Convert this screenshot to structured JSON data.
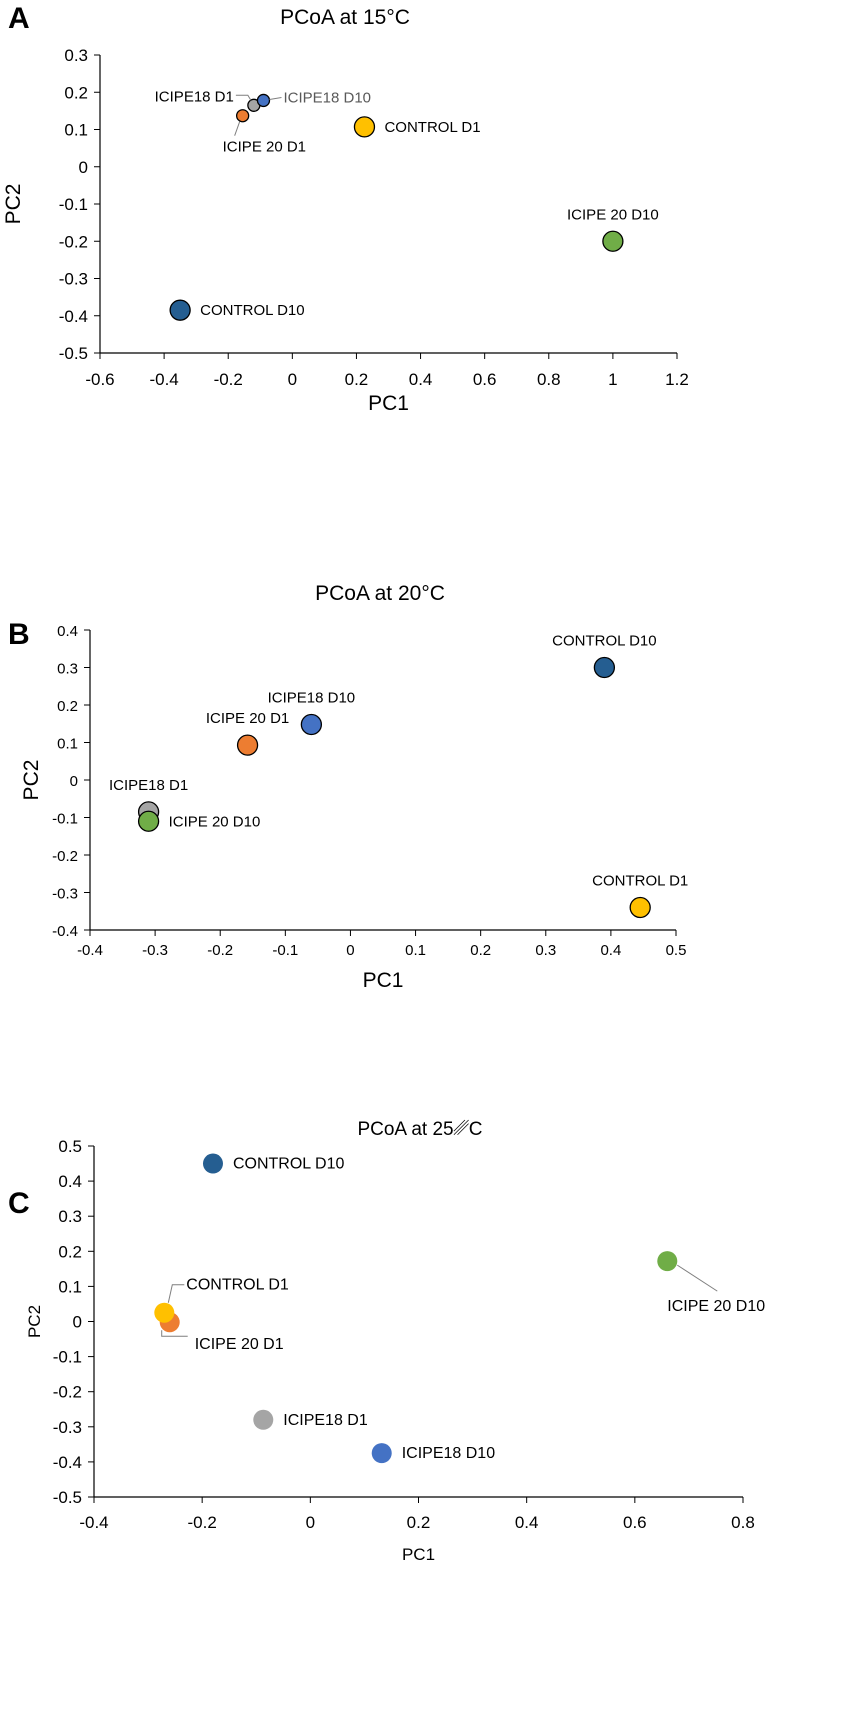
{
  "chart_data": [
    {
      "panel": "A",
      "type": "scatter",
      "title": "PCoA at 15°C",
      "xlabel": "PC1",
      "ylabel": "PC2",
      "xlim": [
        -0.6,
        1.2
      ],
      "ylim": [
        -0.5,
        0.3
      ],
      "xticks": [
        "-0.6",
        "-0.4",
        "-0.2",
        "0",
        "0.2",
        "0.4",
        "0.6",
        "0.8",
        "1",
        "1.2"
      ],
      "yticks": [
        "0.3",
        "0.2",
        "0.1",
        "0",
        "-0.1",
        "-0.2",
        "-0.3",
        "-0.4",
        "-0.5"
      ],
      "grid": false,
      "points": [
        {
          "label": "ICIPE18 D1",
          "x": -0.12,
          "y": 0.165,
          "color": "#a5a5a5",
          "size": "small",
          "label_pos": "left-leader"
        },
        {
          "label": "ICIPE18 D10",
          "x": -0.09,
          "y": 0.178,
          "color": "#4472c4",
          "size": "small",
          "label_pos": "right-leader"
        },
        {
          "label": "ICIPE 20 D1",
          "x": -0.155,
          "y": 0.137,
          "color": "#ed7d31",
          "size": "small",
          "label_pos": "below-leader"
        },
        {
          "label": "CONTROL D1",
          "x": 0.225,
          "y": 0.107,
          "color": "#ffc000",
          "size": "large",
          "label_pos": "right"
        },
        {
          "label": "ICIPE 20 D10",
          "x": 1.0,
          "y": -0.2,
          "color": "#70ad47",
          "size": "large",
          "label_pos": "above"
        },
        {
          "label": "CONTROL D10",
          "x": -0.35,
          "y": -0.385,
          "color": "#255e91",
          "size": "large",
          "label_pos": "right"
        }
      ]
    },
    {
      "panel": "B",
      "type": "scatter",
      "title": "PCoA at 20°C",
      "xlabel": "PC1",
      "ylabel": "PC2",
      "xlim": [
        -0.4,
        0.5
      ],
      "ylim": [
        -0.4,
        0.4
      ],
      "xticks": [
        "-0.4",
        "-0.3",
        "-0.2",
        "-0.1",
        "0",
        "0.1",
        "0.2",
        "0.3",
        "0.4",
        "0.5"
      ],
      "yticks": [
        "0.4",
        "0.3",
        "0.2",
        "0.1",
        "0",
        "-0.1",
        "-0.2",
        "-0.3",
        "-0.4"
      ],
      "grid": false,
      "points": [
        {
          "label": "CONTROL D10",
          "x": 0.39,
          "y": 0.3,
          "color": "#255e91",
          "size": "large",
          "label_pos": "above"
        },
        {
          "label": "ICIPE18 D10",
          "x": -0.06,
          "y": 0.148,
          "color": "#4472c4",
          "size": "large",
          "label_pos": "above"
        },
        {
          "label": "ICIPE 20 D1",
          "x": -0.158,
          "y": 0.093,
          "color": "#ed7d31",
          "size": "large",
          "label_pos": "above"
        },
        {
          "label": "ICIPE18 D1",
          "x": -0.31,
          "y": -0.085,
          "color": "#a5a5a5",
          "size": "large",
          "label_pos": "above"
        },
        {
          "label": "ICIPE 20 D10",
          "x": -0.31,
          "y": -0.11,
          "color": "#70ad47",
          "size": "large",
          "label_pos": "right"
        },
        {
          "label": "CONTROL D1",
          "x": 0.445,
          "y": -0.34,
          "color": "#ffc000",
          "size": "large",
          "label_pos": "above"
        }
      ]
    },
    {
      "panel": "C",
      "type": "scatter",
      "title": "PCoA at 25␥C",
      "xlabel": "PC1",
      "ylabel": "PC2",
      "xlim": [
        -0.4,
        0.8
      ],
      "ylim": [
        -0.5,
        0.5
      ],
      "xticks": [
        "-0.4",
        "-0.2",
        "0",
        "0.2",
        "0.4",
        "0.6",
        "0.8"
      ],
      "yticks": [
        "0.5",
        "0.4",
        "0.3",
        "0.2",
        "0.1",
        "0",
        "-0.1",
        "-0.2",
        "-0.3",
        "-0.4",
        "-0.5"
      ],
      "grid": false,
      "points": [
        {
          "label": "CONTROL D10",
          "x": -0.18,
          "y": 0.45,
          "color": "#255e91",
          "size": "plain",
          "label_pos": "right"
        },
        {
          "label": "ICIPE 20 D10",
          "x": 0.66,
          "y": 0.172,
          "color": "#70ad47",
          "size": "plain",
          "label_pos": "below-right-leader"
        },
        {
          "label": "ICIPE 20 D1",
          "x": -0.26,
          "y": -0.002,
          "color": "#ed7d31",
          "size": "plain",
          "label_pos": "below-right-leader"
        },
        {
          "label": "CONTROL D1",
          "x": -0.27,
          "y": 0.025,
          "color": "#ffc000",
          "size": "plain",
          "label_pos": "above-right-leader"
        },
        {
          "label": "ICIPE18 D1",
          "x": -0.087,
          "y": -0.28,
          "color": "#a5a5a5",
          "size": "plain",
          "label_pos": "right"
        },
        {
          "label": "ICIPE18 D10",
          "x": 0.132,
          "y": -0.375,
          "color": "#4472c4",
          "size": "plain",
          "label_pos": "right"
        }
      ]
    }
  ]
}
